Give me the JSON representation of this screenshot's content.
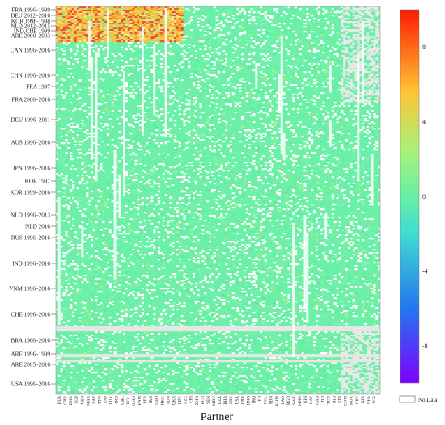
{
  "chart_data": {
    "type": "heatmap",
    "title": "",
    "xlabel": "Partner",
    "ylabel": "",
    "row_labels": [
      "FRA 1996–1999",
      "DEU 2012–2016",
      "KOR 1996-1998",
      "NLD 2012–2015",
      "IND,CHE 1999",
      "ARE 2000–2003",
      "CAN 1996–2016",
      "CHN 1996–2016",
      "FRA 1997",
      "FRA 2000–2016",
      "DEU 1996–2011",
      "AUS 1996–2016",
      "JPN 1996–2016",
      "KOR 1997",
      "KOR 1999–2016",
      "NLD 1996–2013",
      "NLD 2016",
      "RUS 1996–2016",
      "IND 1996–2016",
      "VNM 1996–2016",
      "CHE 1996–2016",
      "BRA 1966–2016",
      "ARE 1996–1999",
      "ARE 2005–2016",
      "USA 1996–2016"
    ],
    "partner_labels": [
      "RUS",
      "GBR",
      "DNK",
      "SGP",
      "VEN",
      "MAR",
      "ZAF",
      "TTO",
      "ESP",
      "LUX",
      "IND",
      "GRC",
      "BOL",
      "OMN",
      "PNM",
      "PER",
      "IRN",
      "GEO",
      "HKG",
      "TUN",
      "UKR",
      "LBY",
      "AZE",
      "CRI",
      "ZMB",
      "ECU",
      "SEN",
      "MDV",
      "DZA",
      "BHR",
      "PRY",
      "USA",
      "LBR",
      "HND",
      "IRQ",
      "FJI",
      "NCL",
      "SDN",
      "KHM",
      "LAO",
      "BGD",
      "SWZ",
      "MNG",
      "GIN",
      "CAF",
      "GAB",
      "DJI",
      "TCD",
      "BDI",
      "STP",
      "COM",
      "KOR",
      "CPV",
      "KIR",
      "NFK",
      "SGS"
    ],
    "colorbar": {
      "ticks": [
        8,
        4,
        0,
        -4,
        -8
      ],
      "range": [
        -10,
        10
      ],
      "colormap": "rainbow",
      "nodata_color": "#e8e8e8",
      "nodata_label": "No Data"
    },
    "grid": false
  }
}
